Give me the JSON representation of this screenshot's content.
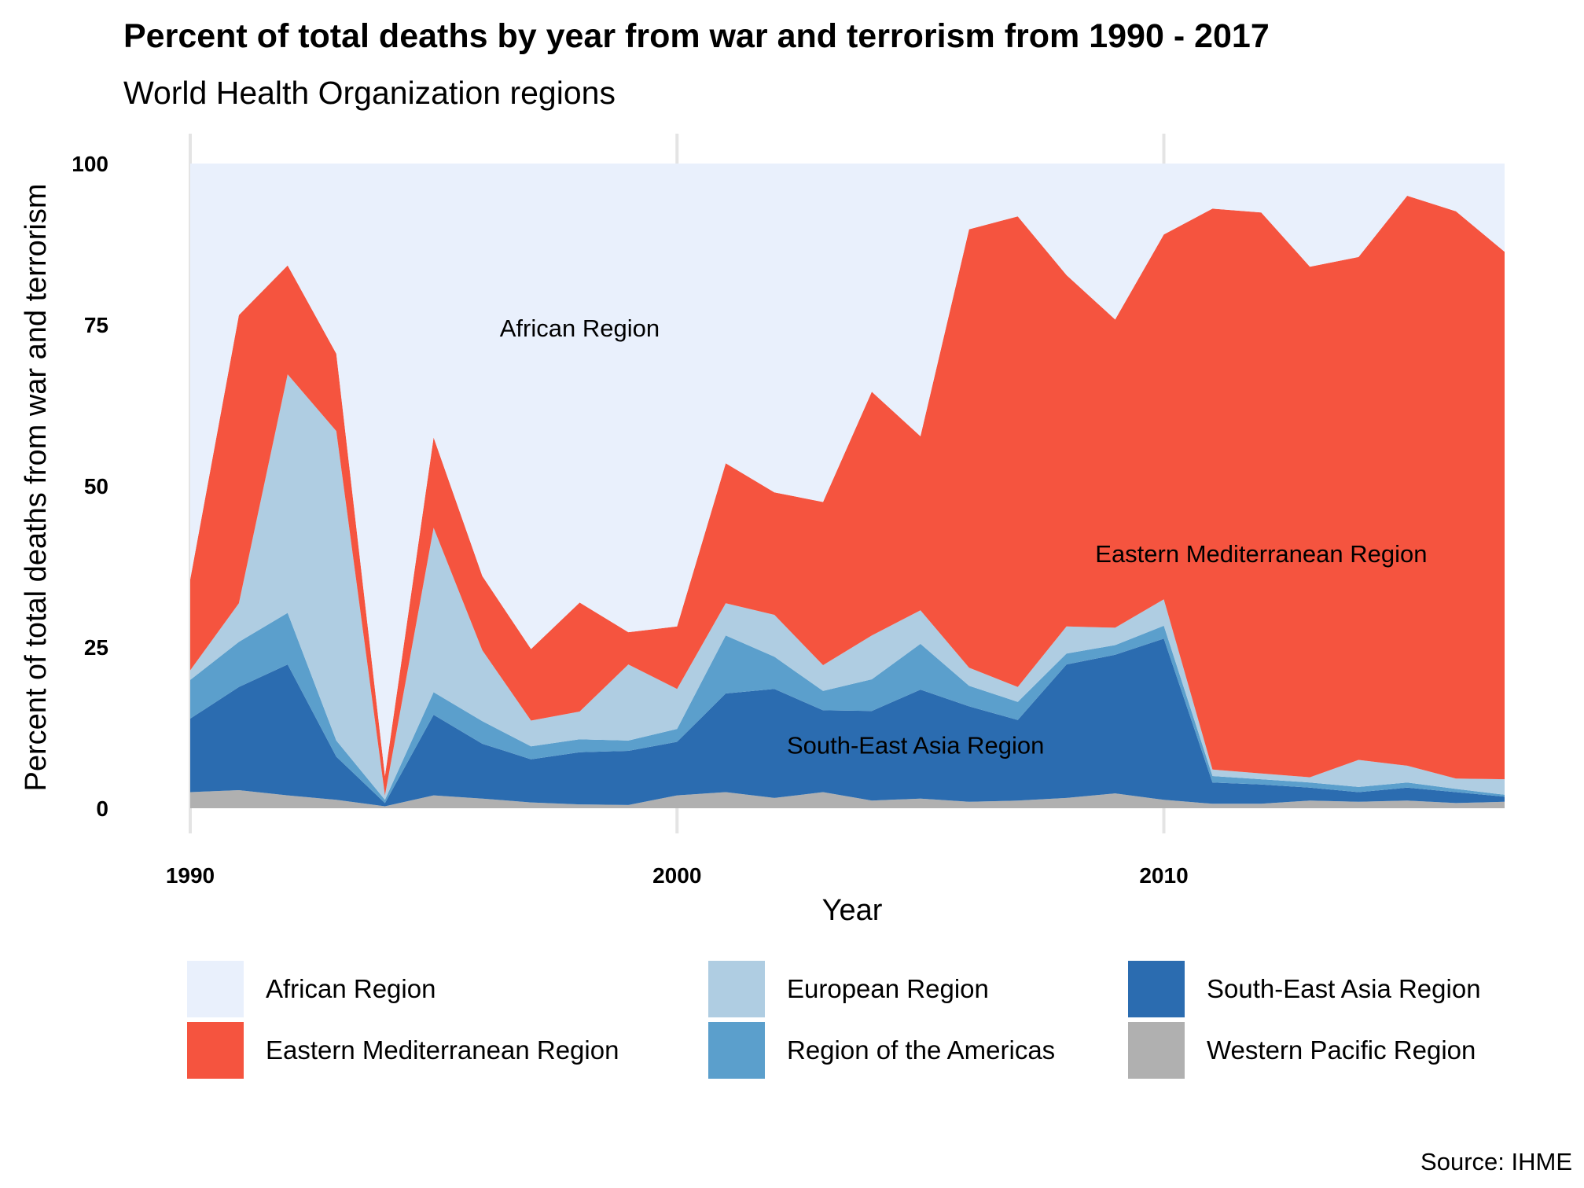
{
  "chart_data": {
    "type": "area",
    "stacked": true,
    "title": "Percent of total deaths by year from war and terrorism from 1990 - 2017",
    "subtitle": "World Health Organization regions",
    "xlabel": "Year",
    "ylabel": "Percent of total deaths from war and terrorism",
    "caption": "Source: IHME",
    "xlim": [
      1990,
      2017
    ],
    "ylim": [
      0,
      100
    ],
    "x_ticks": [
      1990,
      2000,
      2010
    ],
    "y_ticks": [
      0,
      25,
      50,
      75,
      100
    ],
    "grid": "vertical major only",
    "legend_position": "bottom",
    "x": [
      1990,
      1991,
      1992,
      1993,
      1994,
      1995,
      1996,
      1997,
      1998,
      1999,
      2000,
      2001,
      2002,
      2003,
      2004,
      2005,
      2006,
      2007,
      2008,
      2009,
      2010,
      2011,
      2012,
      2013,
      2014,
      2015,
      2016,
      2017
    ],
    "series": [
      {
        "name": "Western Pacific Region",
        "color": "#b0b0b0",
        "values": [
          2.5,
          2.8,
          2.0,
          1.3,
          0.3,
          2.0,
          1.5,
          0.9,
          0.6,
          0.5,
          2.0,
          2.5,
          1.6,
          2.5,
          1.2,
          1.5,
          1.0,
          1.2,
          1.6,
          2.3,
          1.3,
          0.7,
          0.7,
          1.2,
          1.0,
          1.2,
          0.8,
          1.0
        ]
      },
      {
        "name": "South-East Asia Region",
        "color": "#2b6cb0",
        "values": [
          11.4,
          16.0,
          20.3,
          6.7,
          0.5,
          12.5,
          8.5,
          6.7,
          8.1,
          8.4,
          8.3,
          15.3,
          16.9,
          12.7,
          13.9,
          16.9,
          14.8,
          12.5,
          20.7,
          21.5,
          25.0,
          3.3,
          3.0,
          2.0,
          1.5,
          2.0,
          1.7,
          0.8
        ]
      },
      {
        "name": "Region of the Americas",
        "color": "#5b9fcc",
        "values": [
          6.0,
          7.0,
          8.0,
          2.5,
          0.5,
          3.5,
          3.5,
          2.0,
          2.0,
          1.6,
          2.0,
          9.0,
          5.0,
          3.0,
          4.9,
          7.1,
          3.2,
          2.8,
          1.7,
          1.5,
          2.0,
          1.0,
          0.8,
          0.8,
          0.8,
          0.8,
          0.5,
          0.3
        ]
      },
      {
        "name": "European Region",
        "color": "#afcde2",
        "values": [
          1.5,
          6.0,
          37.0,
          48.0,
          0.7,
          25.5,
          11.0,
          4.0,
          4.3,
          11.8,
          6.2,
          5.0,
          6.5,
          4.0,
          6.8,
          5.2,
          2.8,
          2.3,
          4.2,
          2.7,
          4.1,
          1.0,
          0.9,
          0.8,
          4.2,
          2.6,
          1.6,
          2.4
        ]
      },
      {
        "name": "Eastern Mediterranean Region",
        "color": "#f5543f",
        "values": [
          14.1,
          44.7,
          16.9,
          12.0,
          3.0,
          14.0,
          11.5,
          11.1,
          16.9,
          5.0,
          9.7,
          21.7,
          19.0,
          25.3,
          37.8,
          27.0,
          68.0,
          73.0,
          54.5,
          47.8,
          56.6,
          87.0,
          87.0,
          79.2,
          78.0,
          88.4,
          88.0,
          81.8
        ]
      },
      {
        "name": "African Region",
        "color": "#e9f0fc",
        "values": [
          64.5,
          23.5,
          15.8,
          29.5,
          95.0,
          42.5,
          64.0,
          75.3,
          68.1,
          72.7,
          71.8,
          46.5,
          51.0,
          52.5,
          35.4,
          42.3,
          10.2,
          8.2,
          17.3,
          24.2,
          11.0,
          7.0,
          7.6,
          16.0,
          14.5,
          5.0,
          7.4,
          13.7
        ]
      }
    ],
    "annotations": [
      {
        "text": "African Region",
        "x": 1998,
        "y": 74.5
      },
      {
        "text": "Eastern Mediterranean Region",
        "x": 2012,
        "y": 39.5
      },
      {
        "text": "South-East Asia Region",
        "x": 2004.9,
        "y": 9.8
      }
    ],
    "legend": {
      "columns": [
        [
          "African Region",
          "Eastern Mediterranean Region"
        ],
        [
          "European Region",
          "Region of the Americas"
        ],
        [
          "South-East Asia Region",
          "Western Pacific Region"
        ]
      ]
    }
  }
}
